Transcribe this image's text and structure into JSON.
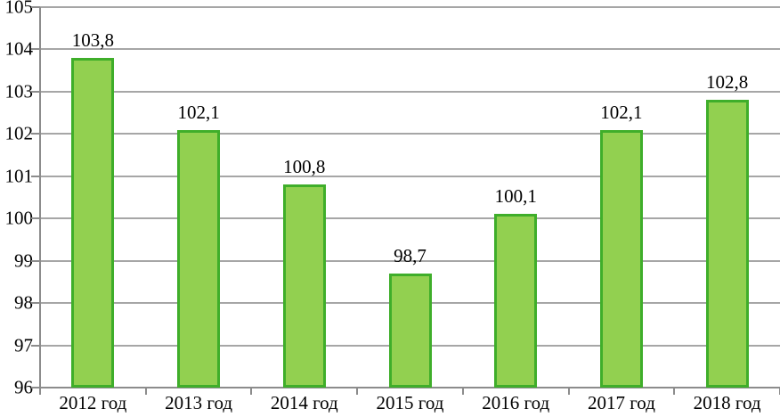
{
  "chart_data": {
    "type": "bar",
    "title": "",
    "xlabel": "",
    "ylabel": "",
    "categories": [
      "2012 год",
      "2013 год",
      "2014 год",
      "2015 год",
      "2016 год",
      "2017 год",
      "2018 год"
    ],
    "values": [
      103.8,
      102.1,
      100.8,
      98.7,
      100.1,
      102.1,
      102.8
    ],
    "value_labels": [
      "103,8",
      "102,1",
      "100,8",
      "98,7",
      "100,1",
      "102,1",
      "102,8"
    ],
    "ylim": [
      96,
      105
    ],
    "yticks": [
      96,
      97,
      98,
      99,
      100,
      101,
      102,
      103,
      104,
      105
    ],
    "ytick_labels": [
      "96",
      "97",
      "98",
      "99",
      "100",
      "101",
      "102",
      "103",
      "104",
      "105"
    ],
    "grid": true,
    "legend_position": "none",
    "colors": {
      "bar_fill": "#92d050",
      "bar_border": "#3fae2a",
      "gridline": "#a6a6a6",
      "axis": "#8c8c8c",
      "text": "#000000"
    }
  }
}
